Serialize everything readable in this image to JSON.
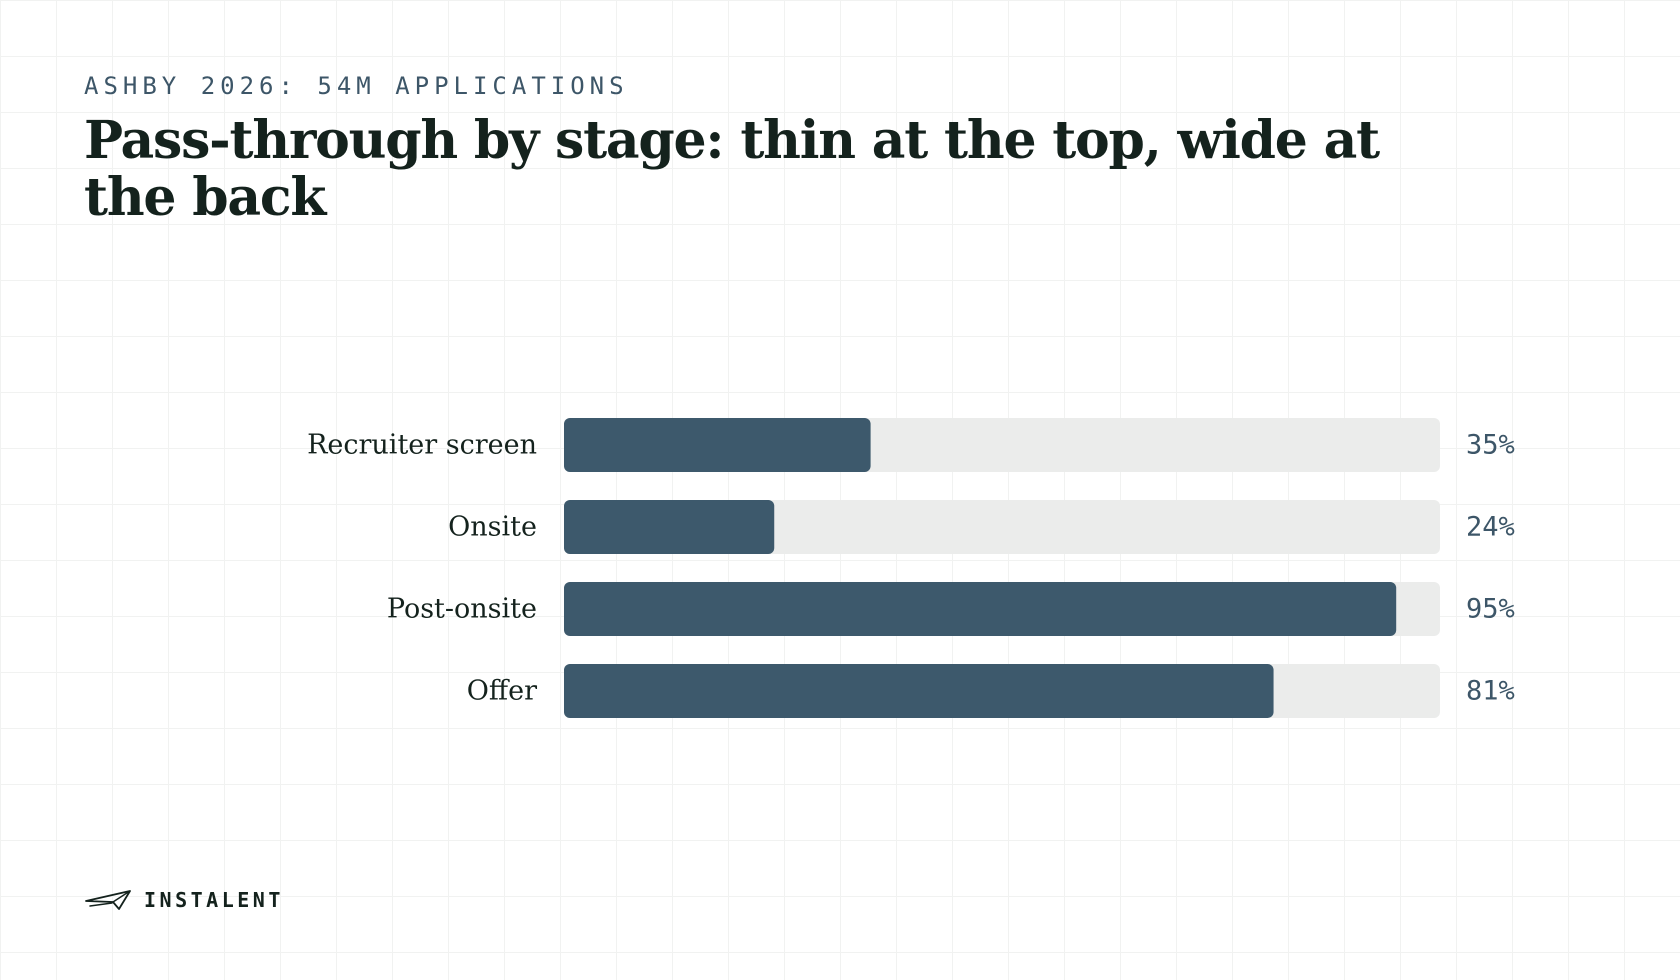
{
  "header": {
    "eyebrow": "ASHBY 2026: 54M APPLICATIONS",
    "title": "Pass-through by stage: thin at the top, wide at the back"
  },
  "footer": {
    "brand_name": "INSTALENT",
    "logo_icon": "paper-plane-logo-icon"
  },
  "colors": {
    "bar_fill": "#3d596c",
    "bar_track": "#ebeceb",
    "title_text": "#14221d",
    "accent_text": "#3d5668"
  },
  "chart_data": {
    "type": "bar",
    "orientation": "horizontal",
    "title": "Pass-through by stage: thin at the top, wide at the back",
    "categories": [
      "Recruiter screen",
      "Onsite",
      "Post-onsite",
      "Offer"
    ],
    "values": [
      35,
      24,
      95,
      81
    ],
    "value_labels": [
      "35%",
      "24%",
      "95%",
      "81%"
    ],
    "xlim": [
      0,
      100
    ],
    "unit": "%",
    "grid": false,
    "legend": "none"
  }
}
